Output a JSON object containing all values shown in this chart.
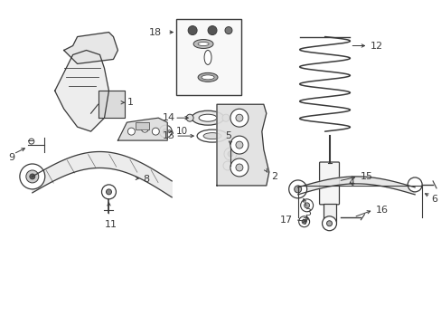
{
  "bg_color": "#ffffff",
  "line_color": "#3a3a3a",
  "label_color": "#000000",
  "fig_width": 4.89,
  "fig_height": 3.6,
  "dpi": 100
}
